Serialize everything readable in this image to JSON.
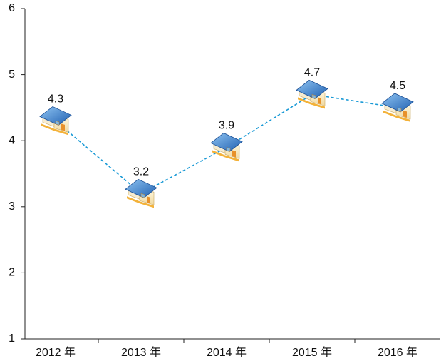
{
  "chart_data": {
    "type": "line",
    "categories": [
      "2012 年",
      "2013 年",
      "2014 年",
      "2015 年",
      "2016 年"
    ],
    "series": [
      {
        "name": null,
        "color": "#1a9ad6",
        "values": [
          4.3,
          3.2,
          3.9,
          4.7,
          4.5
        ]
      }
    ],
    "ylim": [
      1,
      6
    ],
    "yticks": [
      1,
      2,
      3,
      4,
      5,
      6
    ],
    "grid": false
  }
}
